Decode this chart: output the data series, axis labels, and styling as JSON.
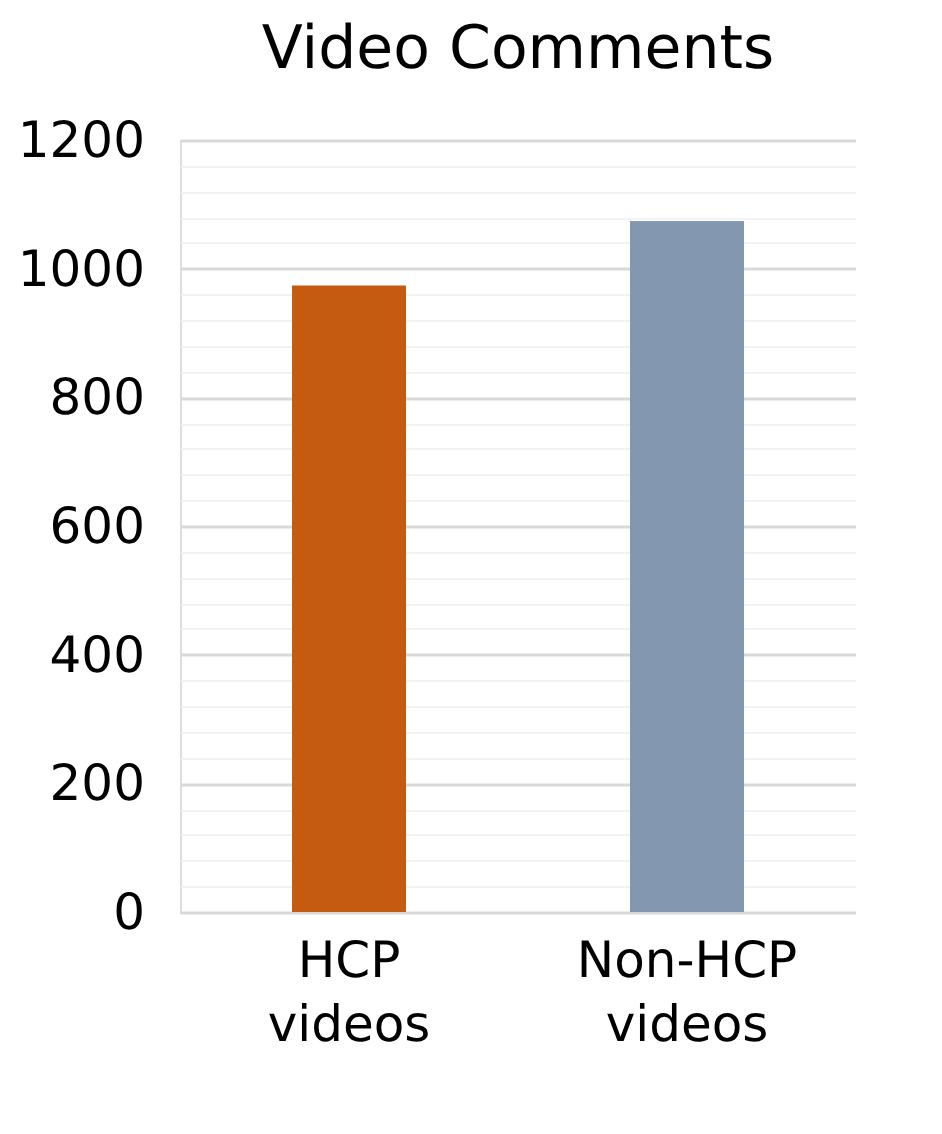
{
  "chart_data": {
    "type": "bar",
    "title": "Video Comments",
    "categories": [
      "HCP videos",
      "Non-HCP videos"
    ],
    "values": [
      974,
      1074
    ],
    "colors": [
      "#c55a11",
      "#8497b0"
    ],
    "ylim": [
      0,
      1200
    ],
    "yticks": [
      0,
      {
        "value": 40,
        "label": null
      },
      {
        "value": 80,
        "label": null
      },
      {
        "value": 120,
        "label": null
      },
      {
        "value": 160,
        "label": null
      },
      200,
      {
        "value": 240,
        "label": null
      },
      {
        "value": 280,
        "label": null
      },
      {
        "value": 320,
        "label": null
      },
      {
        "value": 360,
        "label": null
      },
      400,
      {
        "value": 440,
        "label": null
      },
      {
        "value": 480,
        "label": null
      },
      {
        "value": 520,
        "label": null
      },
      {
        "value": 560,
        "label": null
      },
      600,
      {
        "value": 640,
        "label": null
      },
      {
        "value": 680,
        "label": null
      },
      {
        "value": 720,
        "label": null
      },
      {
        "value": 760,
        "label": null
      },
      800,
      {
        "value": 840,
        "label": null
      },
      {
        "value": 880,
        "label": null
      },
      {
        "value": 920,
        "label": null
      },
      {
        "value": 960,
        "label": null
      },
      1000,
      {
        "value": 1040,
        "label": null
      },
      {
        "value": 1080,
        "label": null
      },
      {
        "value": 1120,
        "label": null
      },
      {
        "value": 1160,
        "label": null
      },
      1200
    ],
    "grid": "y"
  }
}
